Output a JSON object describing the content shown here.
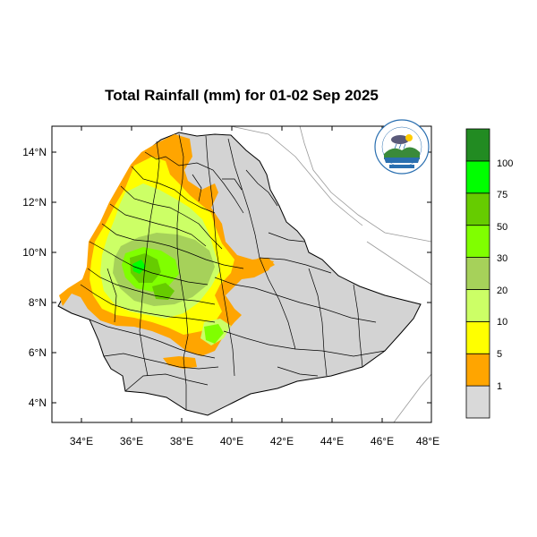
{
  "title": "Total Rainfall (mm) for 01-02 Sep 2025",
  "axes": {
    "lon_ticks": [
      "34°E",
      "36°E",
      "38°E",
      "40°E",
      "42°E",
      "44°E",
      "46°E",
      "48°E"
    ],
    "lat_ticks": [
      "14°N",
      "12°N",
      "10°N",
      "8°N",
      "6°N",
      "4°N"
    ]
  },
  "legend": {
    "labels": [
      "1",
      "5",
      "10",
      "20",
      "30",
      "50",
      "75",
      "100"
    ],
    "colors": [
      "#d9d9d9",
      "#ffa500",
      "#ffff00",
      "#ccff66",
      "#a6d15a",
      "#80ff00",
      "#66cc00",
      "#00ff00",
      "#228b22"
    ]
  },
  "logo": {
    "icon": "agency-logo-icon"
  },
  "colors": {
    "land": "#d3d3d3",
    "borders": "#000000",
    "outer": "#888888"
  }
}
